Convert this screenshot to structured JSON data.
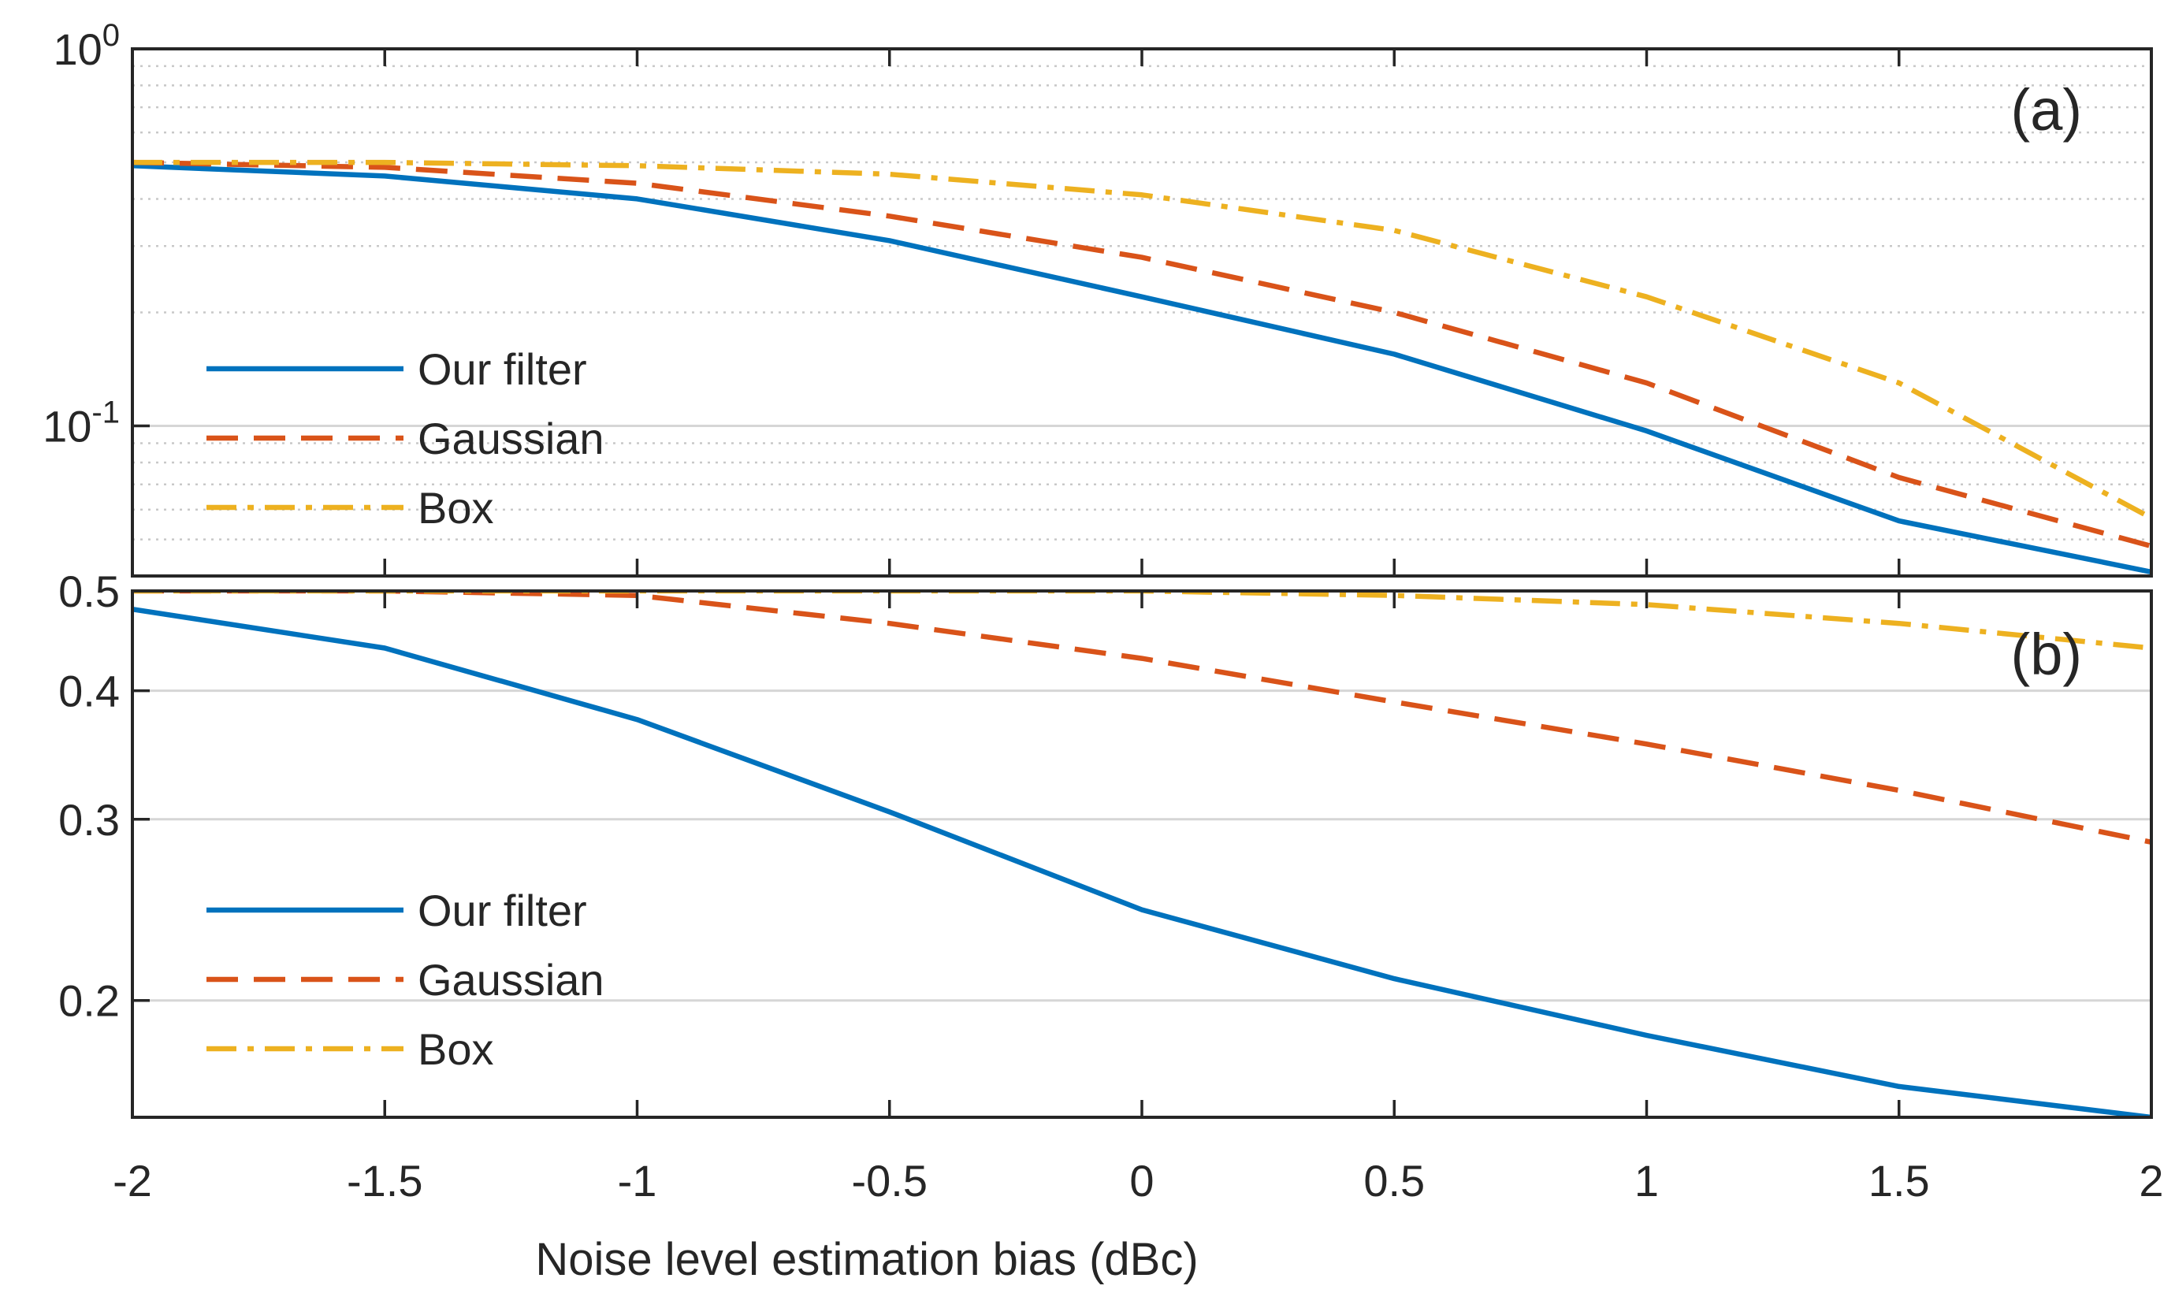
{
  "chart_data": [
    {
      "panel": "(a)",
      "type": "line",
      "yscale": "log",
      "ylim": [
        0.04,
        1
      ],
      "xlim": [
        -2,
        2
      ],
      "grid": "on",
      "legend_location": "bottom-left",
      "yticks": [
        {
          "base": "10",
          "exp": "0",
          "value": 1
        },
        {
          "base": "10",
          "exp": "-1",
          "value": 0.1
        }
      ],
      "x": [
        -2,
        -1.5,
        -1,
        -0.5,
        0,
        0.5,
        1,
        1.5,
        2
      ],
      "series": [
        {
          "name": "Our filter",
          "color": "#0072BD",
          "dash": "solid",
          "values": [
            0.49,
            0.46,
            0.4,
            0.31,
            0.22,
            0.155,
            0.097,
            0.056,
            0.041
          ]
        },
        {
          "name": "Gaussian",
          "color": "#D95319",
          "dash": "dashed",
          "values": [
            0.5,
            0.485,
            0.44,
            0.36,
            0.28,
            0.2,
            0.13,
            0.073,
            0.048
          ]
        },
        {
          "name": "Box",
          "color": "#EDB120",
          "dash": "dashdot",
          "values": [
            0.5,
            0.5,
            0.49,
            0.465,
            0.41,
            0.33,
            0.22,
            0.13,
            0.057
          ]
        }
      ]
    },
    {
      "panel": "(b)",
      "type": "line",
      "yscale": "log",
      "ylim": [
        0.154,
        0.5
      ],
      "xlim": [
        -2,
        2
      ],
      "grid": "on",
      "legend_location": "bottom-left",
      "yticks": [
        {
          "label": "0.5",
          "value": 0.5
        },
        {
          "label": "0.4",
          "value": 0.4
        },
        {
          "label": "0.3",
          "value": 0.3
        },
        {
          "label": "0.2",
          "value": 0.2
        }
      ],
      "x": [
        -2,
        -1.5,
        -1,
        -0.5,
        0,
        0.5,
        1,
        1.5,
        2
      ],
      "series": [
        {
          "name": "Our filter",
          "color": "#0072BD",
          "dash": "solid",
          "values": [
            0.48,
            0.44,
            0.375,
            0.305,
            0.245,
            0.21,
            0.185,
            0.165,
            0.154
          ]
        },
        {
          "name": "Gaussian",
          "color": "#D95319",
          "dash": "dashed",
          "values": [
            0.5,
            0.5,
            0.495,
            0.465,
            0.43,
            0.39,
            0.355,
            0.32,
            0.285
          ]
        },
        {
          "name": "Box",
          "color": "#EDB120",
          "dash": "dashdot",
          "values": [
            0.5,
            0.5,
            0.5,
            0.5,
            0.5,
            0.495,
            0.485,
            0.465,
            0.44
          ]
        }
      ]
    }
  ],
  "xaxis": {
    "label": "Noise level estimation bias (dBc)",
    "ticks": [
      {
        "label": "-2",
        "value": -2
      },
      {
        "label": "-1.5",
        "value": -1.5
      },
      {
        "label": "-1",
        "value": -1
      },
      {
        "label": "-0.5",
        "value": -0.5
      },
      {
        "label": "0",
        "value": 0
      },
      {
        "label": "0.5",
        "value": 0.5
      },
      {
        "label": "1",
        "value": 1
      },
      {
        "label": "1.5",
        "value": 1.5
      },
      {
        "label": "2",
        "value": 2
      }
    ]
  }
}
